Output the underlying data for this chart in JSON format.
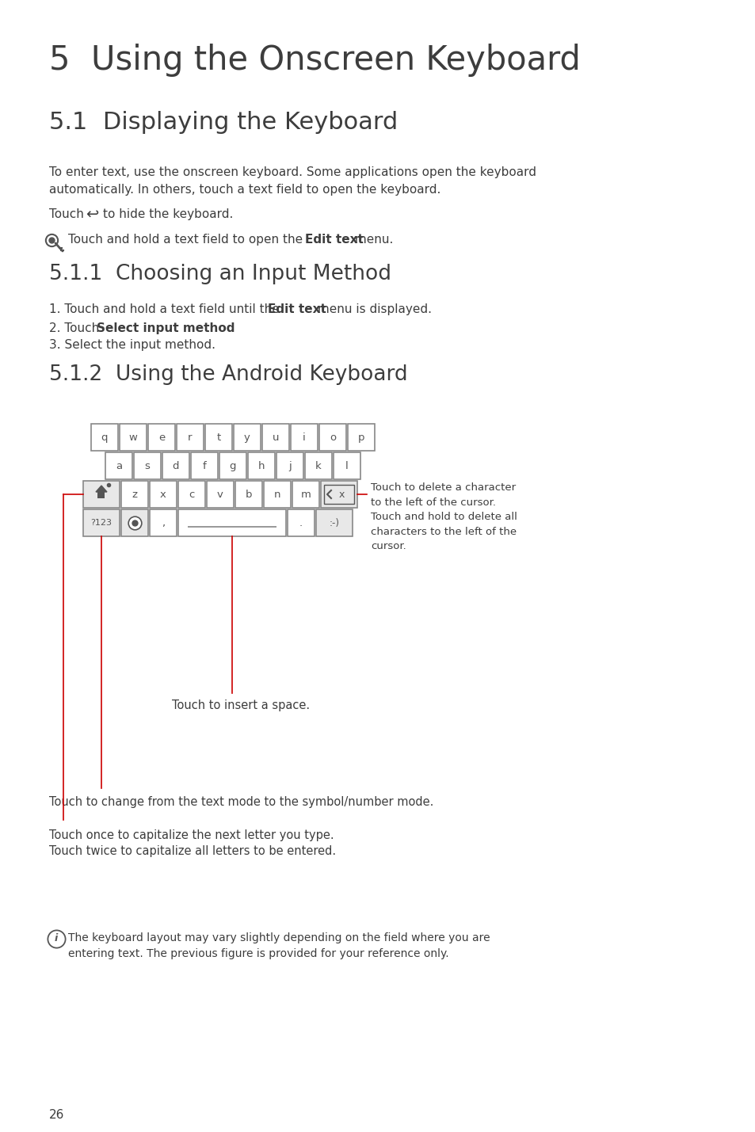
{
  "bg_color": "#ffffff",
  "text_color": "#3d3d3d",
  "title1": "5  Using the Onscreen Keyboard",
  "title2": "5.1  Displaying the Keyboard",
  "subtitle1": "5.1.1  Choosing an Input Method",
  "subtitle2": "5.1.2  Using the Android Keyboard",
  "body1_line1": "To enter text, use the onscreen keyboard. Some applications open the keyboard",
  "body1_line2": "automatically. In others, touch a text field to open the keyboard.",
  "keyboard_row1": [
    "q",
    "w",
    "e",
    "r",
    "t",
    "y",
    "u",
    "i",
    "o",
    "p"
  ],
  "keyboard_row2": [
    "a",
    "s",
    "d",
    "f",
    "g",
    "h",
    "j",
    "k",
    "l"
  ],
  "keyboard_row3": [
    "z",
    "x",
    "c",
    "v",
    "b",
    "n",
    "m"
  ],
  "keyboard_row4_left": "?123",
  "keyboard_row4_right": ":-)",
  "annotation_delete": "Touch to delete a character\nto the left of the cursor.\nTouch and hold to delete all\ncharacters to the left of the\ncursor.",
  "annotation_space": "Touch to insert a space.",
  "annotation_mode": "Touch to change from the text mode to the symbol/number mode.",
  "annotation_caps1": "Touch once to capitalize the next letter you type.",
  "annotation_caps2": "Touch twice to capitalize all letters to be entered.",
  "note2_line1": "The keyboard layout may vary slightly depending on the field where you are",
  "note2_line2": "entering text. The previous figure is provided for your reference only.",
  "page_num": "26",
  "arrow_color": "#cc0000",
  "key_border_color": "#888888",
  "key_text_color": "#555555"
}
